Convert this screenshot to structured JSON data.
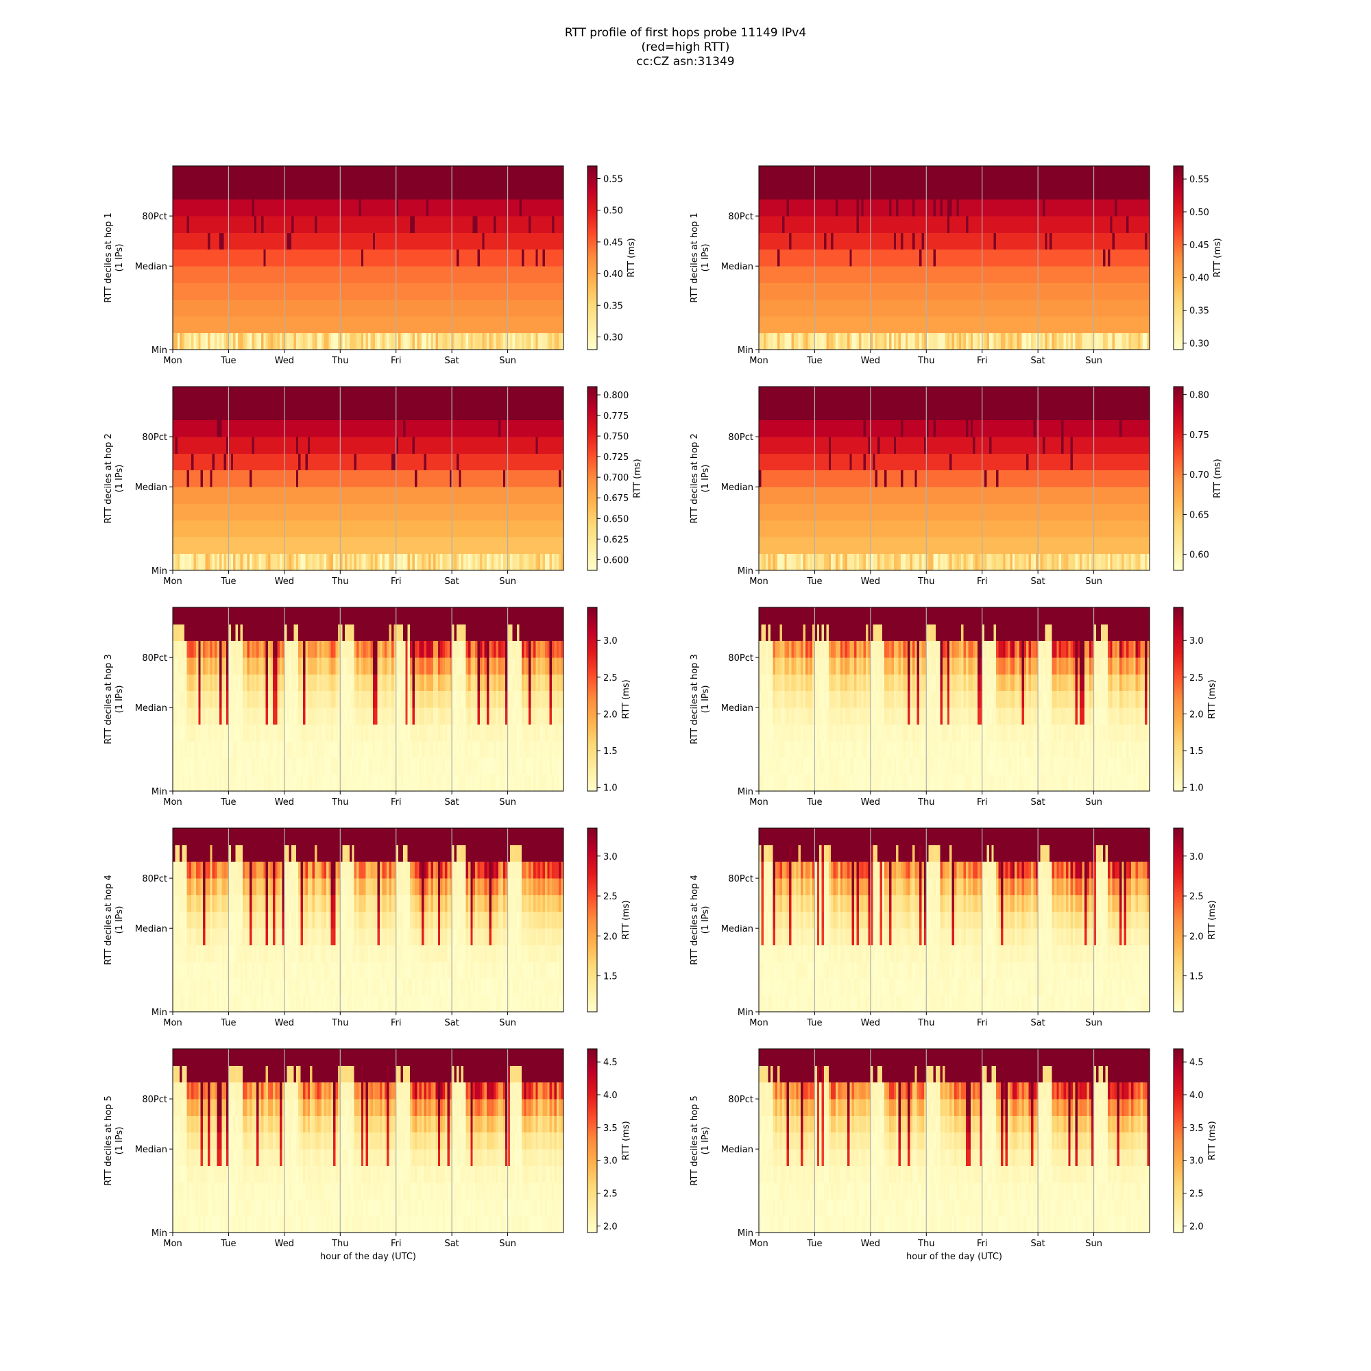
{
  "figure": {
    "title_lines": [
      "RTT profile of first hops probe 11149 IPv4",
      "(red=high RTT)",
      "cc:CZ asn:31349"
    ]
  },
  "chart_data": [
    {
      "type": "heatmap",
      "column": "left",
      "hop": 1,
      "ylabel": [
        "RTT deciles at hop 1",
        "(1 IPs)"
      ],
      "ytick_labels": [
        "Min",
        "Median",
        "80Pct"
      ],
      "xtick_labels": [
        "Mon",
        "Tue",
        "Wed",
        "Thu",
        "Fri",
        "Sat",
        "Sun"
      ],
      "xlabel": "",
      "colorbar_label": "RTT (ms)",
      "colorbar_ticks": [
        "0.30",
        "0.35",
        "0.40",
        "0.45",
        "0.50",
        "0.55"
      ],
      "vmin": 0.28,
      "vmax": 0.57,
      "decile_values_ms": [
        0.31,
        0.41,
        0.42,
        0.43,
        0.44,
        0.46,
        0.49,
        0.51,
        0.53,
        0.57
      ],
      "pattern": "flat",
      "seed": 11
    },
    {
      "type": "heatmap",
      "column": "right",
      "hop": 1,
      "ylabel": [
        "RTT deciles at hop 1",
        "(1 IPs)"
      ],
      "ytick_labels": [
        "Min",
        "Median",
        "80Pct"
      ],
      "xtick_labels": [
        "Mon",
        "Tue",
        "Wed",
        "Thu",
        "Fri",
        "Sat",
        "Sun"
      ],
      "xlabel": "",
      "colorbar_label": "RTT (ms)",
      "colorbar_ticks": [
        "0.30",
        "0.35",
        "0.40",
        "0.45",
        "0.50",
        "0.55"
      ],
      "vmin": 0.29,
      "vmax": 0.57,
      "decile_values_ms": [
        0.31,
        0.41,
        0.42,
        0.43,
        0.44,
        0.46,
        0.49,
        0.51,
        0.53,
        0.57
      ],
      "pattern": "flat",
      "seed": 12
    },
    {
      "type": "heatmap",
      "column": "left",
      "hop": 2,
      "ylabel": [
        "RTT deciles at hop 2",
        "(1 IPs)"
      ],
      "ytick_labels": [
        "Min",
        "Median",
        "80Pct"
      ],
      "xtick_labels": [
        "Mon",
        "Tue",
        "Wed",
        "Thu",
        "Fri",
        "Sat",
        "Sun"
      ],
      "xlabel": "",
      "colorbar_label": "RTT (ms)",
      "colorbar_ticks": [
        "0.600",
        "0.625",
        "0.650",
        "0.675",
        "0.700",
        "0.725",
        "0.750",
        "0.775",
        "0.800"
      ],
      "vmin": 0.587,
      "vmax": 0.81,
      "decile_values_ms": [
        0.61,
        0.66,
        0.67,
        0.68,
        0.69,
        0.71,
        0.74,
        0.76,
        0.78,
        0.81
      ],
      "pattern": "flat",
      "seed": 21
    },
    {
      "type": "heatmap",
      "column": "right",
      "hop": 2,
      "ylabel": [
        "RTT deciles at hop 2",
        "(1 IPs)"
      ],
      "ytick_labels": [
        "Min",
        "Median",
        "80Pct"
      ],
      "xtick_labels": [
        "Mon",
        "Tue",
        "Wed",
        "Thu",
        "Fri",
        "Sat",
        "Sun"
      ],
      "xlabel": "",
      "colorbar_label": "RTT (ms)",
      "colorbar_ticks": [
        "0.60",
        "0.65",
        "0.70",
        "0.75",
        "0.80"
      ],
      "vmin": 0.58,
      "vmax": 0.81,
      "decile_values_ms": [
        0.61,
        0.66,
        0.67,
        0.68,
        0.69,
        0.71,
        0.74,
        0.76,
        0.78,
        0.81
      ],
      "pattern": "flat",
      "seed": 22
    },
    {
      "type": "heatmap",
      "column": "left",
      "hop": 3,
      "ylabel": [
        "RTT deciles at hop 3",
        "(1 IPs)"
      ],
      "ytick_labels": [
        "Min",
        "Median",
        "80Pct"
      ],
      "xtick_labels": [
        "Mon",
        "Tue",
        "Wed",
        "Thu",
        "Fri",
        "Sat",
        "Sun"
      ],
      "xlabel": "",
      "colorbar_label": "RTT (ms)",
      "colorbar_ticks": [
        "1.0",
        "1.5",
        "2.0",
        "2.5",
        "3.0"
      ],
      "vmin": 0.95,
      "vmax": 3.45,
      "pattern": "diurnal",
      "seed": 31
    },
    {
      "type": "heatmap",
      "column": "right",
      "hop": 3,
      "ylabel": [
        "RTT deciles at hop 3",
        "(1 IPs)"
      ],
      "ytick_labels": [
        "Min",
        "Median",
        "80Pct"
      ],
      "xtick_labels": [
        "Mon",
        "Tue",
        "Wed",
        "Thu",
        "Fri",
        "Sat",
        "Sun"
      ],
      "xlabel": "",
      "colorbar_label": "RTT (ms)",
      "colorbar_ticks": [
        "1.0",
        "1.5",
        "2.0",
        "2.5",
        "3.0"
      ],
      "vmin": 0.95,
      "vmax": 3.45,
      "pattern": "diurnal",
      "seed": 32
    },
    {
      "type": "heatmap",
      "column": "left",
      "hop": 4,
      "ylabel": [
        "RTT deciles at hop 4",
        "(1 IPs)"
      ],
      "ytick_labels": [
        "Min",
        "Median",
        "80Pct"
      ],
      "xtick_labels": [
        "Mon",
        "Tue",
        "Wed",
        "Thu",
        "Fri",
        "Sat",
        "Sun"
      ],
      "xlabel": "",
      "colorbar_label": "RTT (ms)",
      "colorbar_ticks": [
        "1.5",
        "2.0",
        "2.5",
        "3.0"
      ],
      "vmin": 1.05,
      "vmax": 3.35,
      "pattern": "diurnal",
      "seed": 41
    },
    {
      "type": "heatmap",
      "column": "right",
      "hop": 4,
      "ylabel": [
        "RTT deciles at hop 4",
        "(1 IPs)"
      ],
      "ytick_labels": [
        "Min",
        "Median",
        "80Pct"
      ],
      "xtick_labels": [
        "Mon",
        "Tue",
        "Wed",
        "Thu",
        "Fri",
        "Sat",
        "Sun"
      ],
      "xlabel": "",
      "colorbar_label": "RTT (ms)",
      "colorbar_ticks": [
        "1.5",
        "2.0",
        "2.5",
        "3.0"
      ],
      "vmin": 1.05,
      "vmax": 3.35,
      "pattern": "diurnal",
      "seed": 42
    },
    {
      "type": "heatmap",
      "column": "left",
      "hop": 5,
      "ylabel": [
        "RTT deciles at hop 5",
        "(1 IPs)"
      ],
      "ytick_labels": [
        "Min",
        "Median",
        "80Pct"
      ],
      "xtick_labels": [
        "Mon",
        "Tue",
        "Wed",
        "Thu",
        "Fri",
        "Sat",
        "Sun"
      ],
      "xlabel": "hour of the day (UTC)",
      "colorbar_label": "RTT (ms)",
      "colorbar_ticks": [
        "2.0",
        "2.5",
        "3.0",
        "3.5",
        "4.0",
        "4.5"
      ],
      "vmin": 1.9,
      "vmax": 4.7,
      "pattern": "diurnal",
      "seed": 51
    },
    {
      "type": "heatmap",
      "column": "right",
      "hop": 5,
      "ylabel": [
        "RTT deciles at hop 5",
        "(1 IPs)"
      ],
      "ytick_labels": [
        "Min",
        "Median",
        "80Pct"
      ],
      "xtick_labels": [
        "Mon",
        "Tue",
        "Wed",
        "Thu",
        "Fri",
        "Sat",
        "Sun"
      ],
      "xlabel": "hour of the day (UTC)",
      "colorbar_label": "RTT (ms)",
      "colorbar_ticks": [
        "2.0",
        "2.5",
        "3.0",
        "3.5",
        "4.0",
        "4.5"
      ],
      "vmin": 1.9,
      "vmax": 4.7,
      "pattern": "diurnal",
      "seed": 52
    }
  ]
}
